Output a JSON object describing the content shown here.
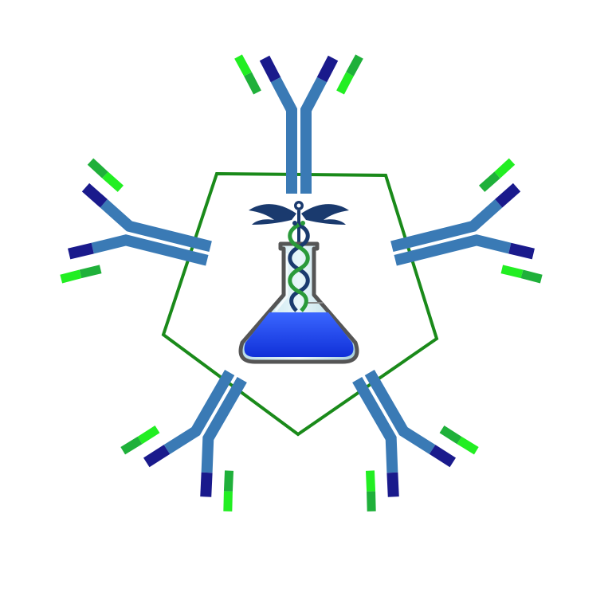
{
  "logo": {
    "icons": [
      "pentagon-outline",
      "antibody-icon",
      "caduceus-icon",
      "erlenmeyer-flask-icon"
    ],
    "antibody_count": 5,
    "colors": {
      "pentagon_stroke": "#1a8a1a",
      "antibody_chain": "#3a7ab5",
      "antibody_tip_dark": "#1a1a8c",
      "antibody_tip_green_bright": "#22ee22",
      "antibody_tip_green_dark": "#1fb03a",
      "caduceus_navy": "#1a3a6e",
      "caduceus_green": "#2a9a3a",
      "flask_glass": "#c8e8f0",
      "flask_outline": "#555555",
      "flask_liquid": "#1a44ee",
      "background": "#ffffff"
    }
  }
}
